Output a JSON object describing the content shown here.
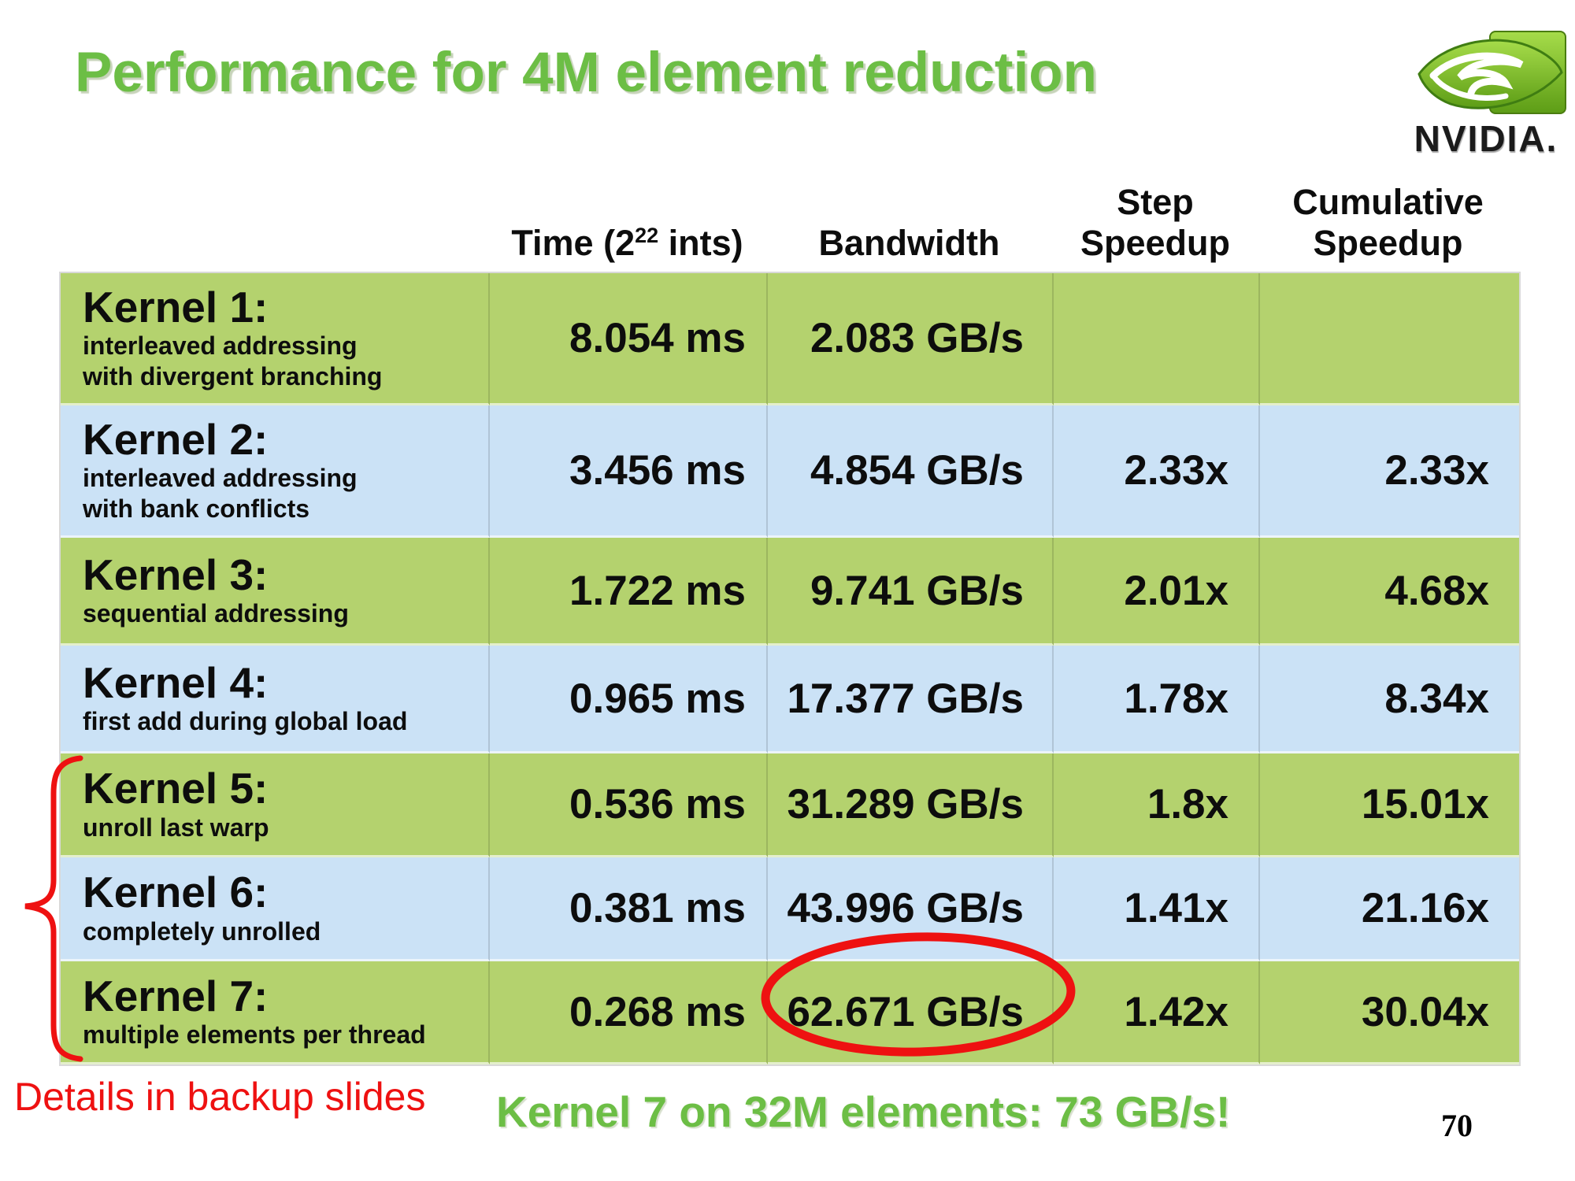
{
  "slide": {
    "title": "Performance for 4M element reduction",
    "logo_text": "NVIDIA.",
    "backup_note": "Details in backup slides",
    "highlight_note": "Kernel 7 on 32M elements: 73 GB/s!",
    "page_number": "70"
  },
  "table": {
    "headers": {
      "time_prefix": "Time (2",
      "time_sup": "22",
      "time_suffix": " ints)",
      "bandwidth": "Bandwidth",
      "step_line1": "Step",
      "step_line2": "Speedup",
      "cumulative_line1": "Cumulative",
      "cumulative_line2": "Speedup"
    },
    "rows": [
      {
        "kernel": "Kernel 1:",
        "desc_lines": [
          "interleaved addressing",
          "with divergent branching"
        ],
        "time": "8.054 ms",
        "bandwidth": "2.083 GB/s",
        "step": "",
        "cumulative": ""
      },
      {
        "kernel": "Kernel 2:",
        "desc_lines": [
          "interleaved addressing",
          "with bank conflicts"
        ],
        "time": "3.456 ms",
        "bandwidth": "4.854 GB/s",
        "step": "2.33x",
        "cumulative": "2.33x"
      },
      {
        "kernel": "Kernel 3:",
        "desc_lines": [
          "sequential addressing"
        ],
        "time": "1.722 ms",
        "bandwidth": "9.741 GB/s",
        "step": "2.01x",
        "cumulative": "4.68x"
      },
      {
        "kernel": "Kernel 4:",
        "desc_lines": [
          "first add during global load"
        ],
        "time": "0.965 ms",
        "bandwidth": "17.377 GB/s",
        "step": "1.78x",
        "cumulative": "8.34x"
      },
      {
        "kernel": "Kernel 5:",
        "desc_lines": [
          "unroll last warp"
        ],
        "time": "0.536 ms",
        "bandwidth": "31.289 GB/s",
        "step": "1.8x",
        "cumulative": "15.01x"
      },
      {
        "kernel": "Kernel 6:",
        "desc_lines": [
          "completely unrolled"
        ],
        "time": "0.381 ms",
        "bandwidth": "43.996 GB/s",
        "step": "1.41x",
        "cumulative": "21.16x"
      },
      {
        "kernel": "Kernel 7:",
        "desc_lines": [
          "multiple elements per thread"
        ],
        "time": "0.268 ms",
        "bandwidth": "62.671 GB/s",
        "step": "1.42x",
        "cumulative": "30.04x"
      }
    ]
  },
  "annotations": {
    "circled_value": "62.671 GB/s",
    "brace_groups": [
      "Kernel 5",
      "Kernel 6",
      "Kernel 7"
    ]
  },
  "colors": {
    "row_green": "#b4d26e",
    "row_blue": "#cbe2f6",
    "accent_green": "#6cbe45",
    "highlight_red": "#ee1111"
  },
  "chart_data": {
    "type": "table",
    "title": "Performance for 4M element reduction",
    "columns": [
      "Kernel",
      "Time (2^22 ints)",
      "Bandwidth",
      "Step Speedup",
      "Cumulative Speedup"
    ],
    "rows": [
      [
        "Kernel 1: interleaved addressing with divergent branching",
        "8.054 ms",
        "2.083 GB/s",
        null,
        null
      ],
      [
        "Kernel 2: interleaved addressing with bank conflicts",
        "3.456 ms",
        "4.854 GB/s",
        "2.33x",
        "2.33x"
      ],
      [
        "Kernel 3: sequential addressing",
        "1.722 ms",
        "9.741 GB/s",
        "2.01x",
        "4.68x"
      ],
      [
        "Kernel 4: first add during global load",
        "0.965 ms",
        "17.377 GB/s",
        "1.78x",
        "8.34x"
      ],
      [
        "Kernel 5: unroll last warp",
        "0.536 ms",
        "31.289 GB/s",
        "1.8x",
        "15.01x"
      ],
      [
        "Kernel 6: completely unrolled",
        "0.381 ms",
        "43.996 GB/s",
        "1.41x",
        "21.16x"
      ],
      [
        "Kernel 7: multiple elements per thread",
        "0.268 ms",
        "62.671 GB/s",
        "1.42x",
        "30.04x"
      ]
    ],
    "footnote": "Kernel 7 on 32M elements: 73 GB/s!"
  }
}
